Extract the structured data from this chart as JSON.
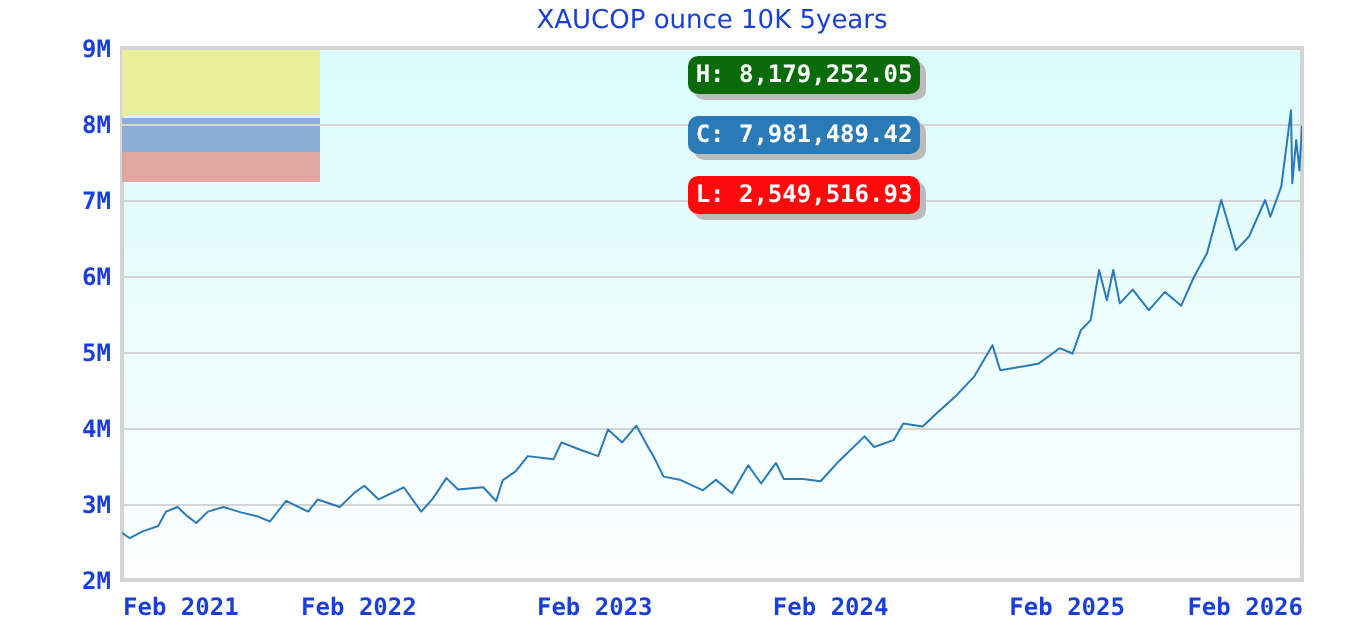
{
  "chart_data": {
    "type": "line",
    "title": "XAUCOP ounce 10K 5years",
    "x": [
      "2021-02-01",
      "2021-02-13",
      "2021-03-05",
      "2021-03-29",
      "2021-04-10",
      "2021-04-28",
      "2021-05-13",
      "2021-05-27",
      "2021-06-14",
      "2021-07-08",
      "2021-08-04",
      "2021-08-29",
      "2021-09-18",
      "2021-10-13",
      "2021-11-16",
      "2021-12-01",
      "2022-01-04",
      "2022-01-27",
      "2022-02-11",
      "2022-03-05",
      "2022-04-13",
      "2022-05-10",
      "2022-05-27",
      "2022-06-18",
      "2022-07-06",
      "2022-08-14",
      "2022-09-03",
      "2022-09-13",
      "2022-10-03",
      "2022-10-22",
      "2022-12-01",
      "2022-12-13",
      "2023-01-09",
      "2023-02-08",
      "2023-02-23",
      "2023-03-17",
      "2023-04-08",
      "2023-04-28",
      "2023-05-05",
      "2023-05-20",
      "2023-06-14",
      "2023-07-20",
      "2023-08-09",
      "2023-09-03",
      "2023-09-28",
      "2023-10-18",
      "2023-11-10",
      "2023-11-22",
      "2023-12-22",
      "2024-01-18",
      "2024-02-15",
      "2024-03-26",
      "2024-04-10",
      "2024-05-10",
      "2024-05-25",
      "2024-06-24",
      "2024-07-14",
      "2024-08-13",
      "2024-09-12",
      "2024-10-10",
      "2024-10-22",
      "2024-11-26",
      "2024-12-21",
      "2025-01-22",
      "2025-02-11",
      "2025-02-24",
      "2025-03-11",
      "2025-03-24",
      "2025-04-05",
      "2025-04-15",
      "2025-04-25",
      "2025-05-15",
      "2025-06-09",
      "2025-07-04",
      "2025-07-29",
      "2025-08-18",
      "2025-09-07",
      "2025-09-29",
      "2025-10-22",
      "2025-11-11",
      "2025-12-06",
      "2025-12-14",
      "2025-12-31",
      "2026-01-15",
      "2026-01-17",
      "2026-01-23",
      "2026-01-28",
      "2026-02-01"
    ],
    "series": [
      {
        "color": "#2a7ab8",
        "values": [
          2620000,
          2550000,
          2640000,
          2710000,
          2900000,
          2960000,
          2840000,
          2750000,
          2900000,
          2960000,
          2890000,
          2840000,
          2770000,
          3040000,
          2900000,
          3060000,
          2960000,
          3150000,
          3240000,
          3060000,
          3220000,
          2900000,
          3060000,
          3340000,
          3190000,
          3220000,
          3040000,
          3310000,
          3430000,
          3630000,
          3590000,
          3810000,
          3720000,
          3630000,
          3980000,
          3810000,
          4030000,
          3720000,
          3620000,
          3360000,
          3320000,
          3180000,
          3320000,
          3140000,
          3510000,
          3270000,
          3540000,
          3330000,
          3330000,
          3300000,
          3560000,
          3890000,
          3750000,
          3840000,
          4060000,
          4020000,
          4180000,
          4410000,
          4680000,
          5090000,
          4760000,
          4810000,
          4850000,
          5050000,
          4980000,
          5290000,
          5420000,
          6080000,
          5680000,
          6080000,
          5640000,
          5820000,
          5550000,
          5790000,
          5610000,
          5990000,
          6300000,
          7000000,
          6340000,
          6520000,
          7000000,
          6780000,
          7180000,
          8180000,
          7220000,
          7790000,
          7390000,
          7980000
        ]
      }
    ],
    "xlim": [
      "2021-02-01",
      "2026-02-01"
    ],
    "xticks": [
      {
        "value": "2021-02",
        "label": "Feb 2021"
      },
      {
        "value": "2022-02",
        "label": "Feb 2022"
      },
      {
        "value": "2023-02",
        "label": "Feb 2023"
      },
      {
        "value": "2024-02",
        "label": "Feb 2024"
      },
      {
        "value": "2025-02",
        "label": "Feb 2025"
      },
      {
        "value": "2026-02",
        "label": "Feb 2026"
      }
    ],
    "ylim": [
      2000000,
      9000000
    ],
    "yticks": [
      {
        "value": 2000000,
        "label": "2M"
      },
      {
        "value": 3000000,
        "label": "3M"
      },
      {
        "value": 4000000,
        "label": "4M"
      },
      {
        "value": 5000000,
        "label": "5M"
      },
      {
        "value": 6000000,
        "label": "6M"
      },
      {
        "value": 7000000,
        "label": "7M"
      },
      {
        "value": 8000000,
        "label": "8M"
      },
      {
        "value": 9000000,
        "label": "9M"
      }
    ],
    "grid": "y",
    "annotations": [
      "H: 8,179,252.05",
      "C: 7,981,489.42",
      "L: 2,549,516.93"
    ]
  }
}
